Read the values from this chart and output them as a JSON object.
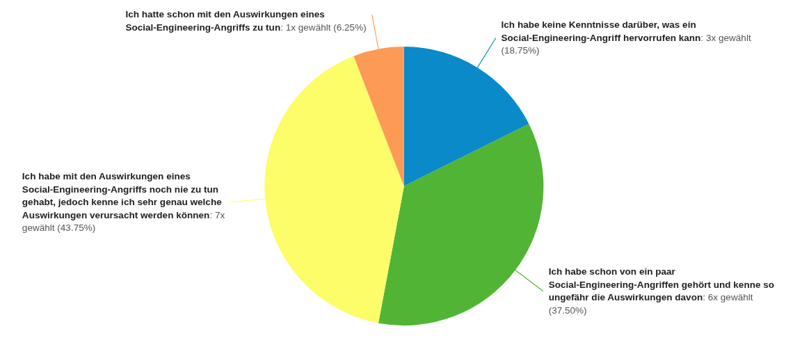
{
  "chart_data": {
    "type": "pie",
    "categories": [
      "Ich habe keine Kenntnisse darüber, was ein Social-Engineering-Angriff hervorrufen kann",
      "Ich habe schon von ein paar Social-Engineering-Angriffen gehört und kenne so ungefähr die Auswirkungen davon",
      "Ich habe mit den Auswirkungen eines Social-Engineering-Angriffs noch nie zu tun gehabt, jedoch kenne ich sehr genau welche Auswirkungen verursacht werden können",
      "Ich hatte schon mit den Auswirkungen eines Social-Engineering-Angriffs zu tun"
    ],
    "values": [
      18.75,
      37.5,
      43.75,
      6.25
    ],
    "value_labels": [
      ": 3x gewählt (18.75%)",
      ": 6x gewählt (37.50%)",
      ": 7x gewählt (43.75%)",
      ": 1x gewählt (6.25%)"
    ],
    "colors": [
      "#0a8ac9",
      "#52b435",
      "#fdfd6a",
      "#fd9a55"
    ]
  }
}
